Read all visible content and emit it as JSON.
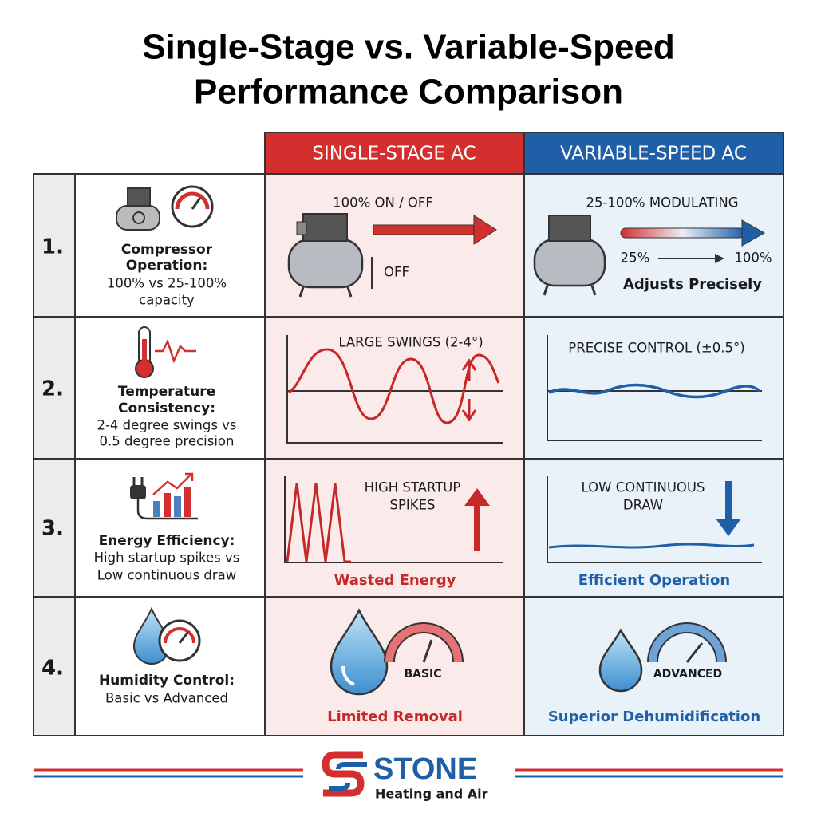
{
  "title_lines": [
    "Single-Stage vs. Variable-Speed",
    "Performance Comparison"
  ],
  "table": {
    "headers": [
      "SINGLE-STAGE AC",
      "VARIABLE-SPEED AC"
    ],
    "rows": [
      {
        "number": "1.",
        "label_lines": [
          "Compressor",
          "Operation:"
        ],
        "desc_lines": [
          "100% vs 25-100%",
          "capacity"
        ],
        "single": {
          "label": "100% ON / OFF",
          "note": "OFF"
        },
        "variable": {
          "label": "25-100% MODULATING",
          "from": "25%",
          "to": "100%",
          "caption": "Adjusts Precisely"
        }
      },
      {
        "number": "2.",
        "label_lines": [
          "Temperature",
          "Consistency:"
        ],
        "desc_lines": [
          "2-4 degree swings vs",
          "0.5 degree precision"
        ],
        "single": {
          "label": "LARGE SWINGS (2-4°)"
        },
        "variable": {
          "label": "PRECISE CONTROL (±0.5°)"
        }
      },
      {
        "number": "3.",
        "label_lines": [
          "Energy Efficiency:"
        ],
        "desc_lines": [
          "High startup spikes vs",
          "Low continuous draw"
        ],
        "single": {
          "label_lines": [
            "HIGH STARTUP",
            "SPIKES"
          ],
          "caption": "Wasted Energy"
        },
        "variable": {
          "label_lines": [
            "LOW CONTINUOUS",
            "DRAW"
          ],
          "caption": "Efficient Operation"
        }
      },
      {
        "number": "4.",
        "label_lines": [
          "Humidity Control:"
        ],
        "desc_lines": [
          "Basic vs Advanced"
        ],
        "single": {
          "gauge": "BASIC",
          "caption": "Limited Removal"
        },
        "variable": {
          "gauge": "ADVANCED",
          "caption": "Superior Dehumidification"
        }
      }
    ]
  },
  "footer": {
    "brand": "STONE",
    "tagline": "Heating and Air"
  }
}
